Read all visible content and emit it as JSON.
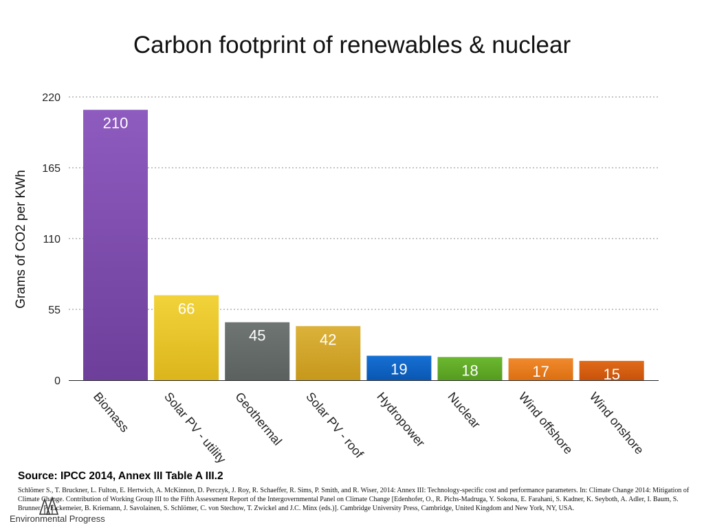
{
  "chart_data": {
    "type": "bar",
    "title": "Carbon footprint of renewables & nuclear",
    "ylabel": "Grams of CO2 per KWh",
    "xlabel": "",
    "ylim": [
      0,
      220
    ],
    "yticks": [
      0,
      55,
      110,
      165,
      220
    ],
    "grid": true,
    "legend": "none",
    "categories": [
      "Biomass",
      "Solar PV - utility",
      "Geothermal",
      "Solar PV - roof",
      "Hydropower",
      "Nuclear",
      "Wind offshore",
      "Wind onshore"
    ],
    "values": [
      210,
      66,
      45,
      42,
      19,
      18,
      17,
      15
    ],
    "colors": [
      [
        "#8e5bbf",
        "#6d3f9a"
      ],
      [
        "#f2d33a",
        "#dcb51c"
      ],
      [
        "#6f7573",
        "#5b615f"
      ],
      [
        "#dcb23a",
        "#c6981c"
      ],
      [
        "#1670d4",
        "#0a57b2"
      ],
      [
        "#6cb830",
        "#559c1f"
      ],
      [
        "#f08a2c",
        "#dc6f12"
      ],
      [
        "#e06a1a",
        "#c8520a"
      ]
    ]
  },
  "source": {
    "heading": "Source: IPCC 2014, Annex III Table A III.2",
    "citation": "Schlömer S., T. Bruckner, L. Fulton, E. Hertwich, A. McKinnon, D. Perczyk, J. Roy, R. Schaeffer, R. Sims, P. Smith, and R. Wiser, 2014: Annex III: Technology-specific cost and performance parameters. In: Climate Change 2014: Mitigation of Climate Change. Contribution of Working Group III to the Fifth Assessment Report of the Intergovernmental Panel on Climate Change [Edenhofer, O., R. Pichs-Madruga, Y. Sokona, E. Farahani, S. Kadner, K. Seyboth, A. Adler, I. Baum, S. Brunner, P. Eickemeier, B. Kriemann, J. Savolainen, S. Schlömer, C. von Stechow, T. Zwickel and J.C. Minx (eds.)]. Cambridge University Press, Cambridge, United Kingdom and New York, NY, USA."
  },
  "branding": {
    "org_name": "Environmental Progress",
    "logo_icon": "tree-logo-icon"
  }
}
